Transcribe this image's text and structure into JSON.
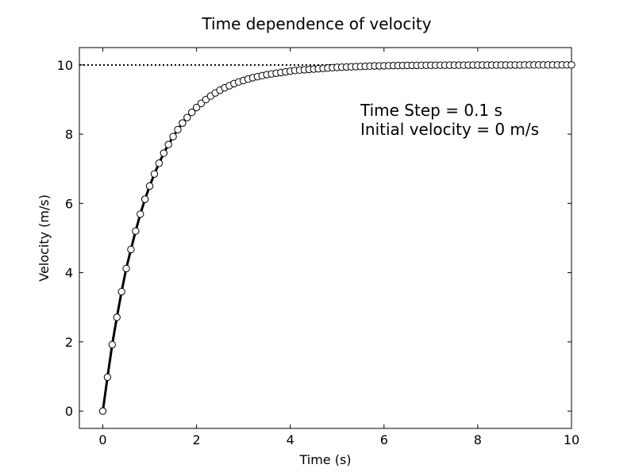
{
  "chart_data": {
    "type": "line",
    "title": "Time dependence of velocity",
    "xlabel": "Time (s)",
    "ylabel": "Velocity (m/s)",
    "xlim": [
      -0.5,
      10
    ],
    "ylim": [
      -0.5,
      10.5
    ],
    "xticks": [
      0,
      2,
      4,
      6,
      8,
      10
    ],
    "yticks": [
      0,
      2,
      4,
      6,
      8,
      10
    ],
    "grid": false,
    "annotations": [
      "Time Step = 0.1 s",
      "Initial velocity = 0 m/s"
    ],
    "reference_line": {
      "y": 10,
      "style": "dotted"
    },
    "curve": {
      "x": [
        0,
        0.1,
        0.2,
        0.3,
        0.4,
        0.5,
        0.6,
        0.7,
        0.8,
        0.9,
        1.0,
        1.1,
        1.2,
        1.3,
        1.4,
        1.5,
        1.6,
        1.7,
        1.8,
        1.9,
        2.0
      ],
      "y": [
        0,
        0.98,
        1.92,
        2.71,
        3.45,
        4.12,
        4.67,
        5.2,
        5.69,
        6.12,
        6.5,
        6.85,
        7.16,
        7.45,
        7.7,
        7.93,
        8.13,
        8.32,
        8.48,
        8.63,
        8.77
      ],
      "style": "solid"
    },
    "points": {
      "x": [
        0,
        0.1,
        0.2,
        0.3,
        0.4,
        0.5,
        0.6,
        0.7,
        0.8,
        0.9,
        1.0,
        1.1,
        1.2,
        1.3,
        1.4,
        1.5,
        1.6,
        1.7,
        1.8,
        1.9,
        2.0,
        2.1,
        2.2,
        2.3,
        2.4,
        2.5,
        2.6,
        2.7,
        2.8,
        2.9,
        3.0,
        3.1,
        3.2,
        3.3,
        3.4,
        3.5,
        3.6,
        3.7,
        3.8,
        3.9,
        4.0,
        4.1,
        4.2,
        4.3,
        4.4,
        4.5,
        4.6,
        4.7,
        4.8,
        4.9,
        5.0,
        5.1,
        5.2,
        5.3,
        5.4,
        5.5,
        5.6,
        5.7,
        5.8,
        5.9,
        6.0,
        6.1,
        6.2,
        6.3,
        6.4,
        6.5,
        6.6,
        6.7,
        6.8,
        6.9,
        7.0,
        7.1,
        7.2,
        7.3,
        7.4,
        7.5,
        7.6,
        7.7,
        7.8,
        7.9,
        8.0,
        8.1,
        8.2,
        8.3,
        8.4,
        8.5,
        8.6,
        8.7,
        8.8,
        8.9,
        9.0,
        9.1,
        9.2,
        9.3,
        9.4,
        9.5,
        9.6,
        9.7,
        9.8,
        9.9,
        10.0
      ],
      "y": [
        0,
        0.98,
        1.92,
        2.71,
        3.45,
        4.12,
        4.67,
        5.2,
        5.69,
        6.12,
        6.5,
        6.85,
        7.16,
        7.45,
        7.7,
        7.93,
        8.13,
        8.32,
        8.48,
        8.63,
        8.77,
        8.89,
        9.0,
        9.1,
        9.19,
        9.27,
        9.34,
        9.4,
        9.46,
        9.51,
        9.55,
        9.59,
        9.63,
        9.66,
        9.69,
        9.72,
        9.74,
        9.76,
        9.78,
        9.8,
        9.82,
        9.84,
        9.85,
        9.86,
        9.87,
        9.88,
        9.89,
        9.9,
        9.91,
        9.92,
        9.93,
        9.935,
        9.94,
        9.945,
        9.95,
        9.955,
        9.96,
        9.965,
        9.97,
        9.972,
        9.975,
        9.977,
        9.98,
        9.982,
        9.984,
        9.985,
        9.986,
        9.987,
        9.988,
        9.989,
        9.99,
        9.991,
        9.992,
        9.992,
        9.993,
        9.993,
        9.994,
        9.994,
        9.995,
        9.995,
        9.996,
        9.996,
        9.996,
        9.997,
        9.997,
        9.997,
        9.998,
        9.998,
        9.998,
        9.998,
        9.999,
        9.999,
        9.999,
        9.999,
        9.999,
        9.999,
        10.0,
        10.0,
        10.0,
        10.0,
        10.0
      ],
      "marker": "open-circle"
    },
    "colors": {
      "line": "#000000",
      "marker_fill": "#ffffff",
      "marker_edge": "#000000",
      "background": "#ffffff"
    }
  }
}
